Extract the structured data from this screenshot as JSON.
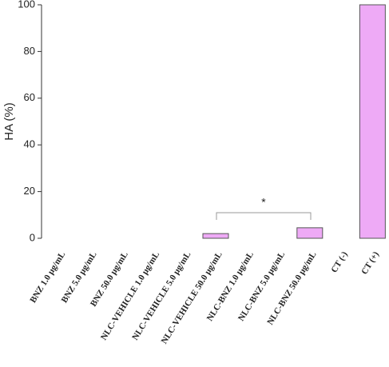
{
  "chart_data": {
    "type": "bar",
    "y_label": "HA (%)",
    "categories": [
      "BNZ 1.0 µg/mL",
      "BNZ 5.0 µg/mL",
      "BNZ 50.0 µg/mL",
      "NLC-VEHICLE 1.0 µg/mL",
      "NLC-VEHICLE 5.0 µg/mL",
      "NLC-VEHICLE 50.0 µg/mL",
      "NLC-BNZ 1.0 µg/mL",
      "NLC-BNZ 5.0 µg/mL",
      "NLC-BNZ 50.0 µg/mL",
      "CT (-)",
      "CT (+)"
    ],
    "values": [
      0,
      0,
      0,
      0,
      0,
      2,
      0,
      0,
      4.5,
      0,
      100
    ],
    "color": "#eeaaf6",
    "ylim": [
      0,
      100
    ],
    "yticks": [
      0,
      20,
      40,
      60,
      80,
      100
    ],
    "annotation": "*"
  }
}
